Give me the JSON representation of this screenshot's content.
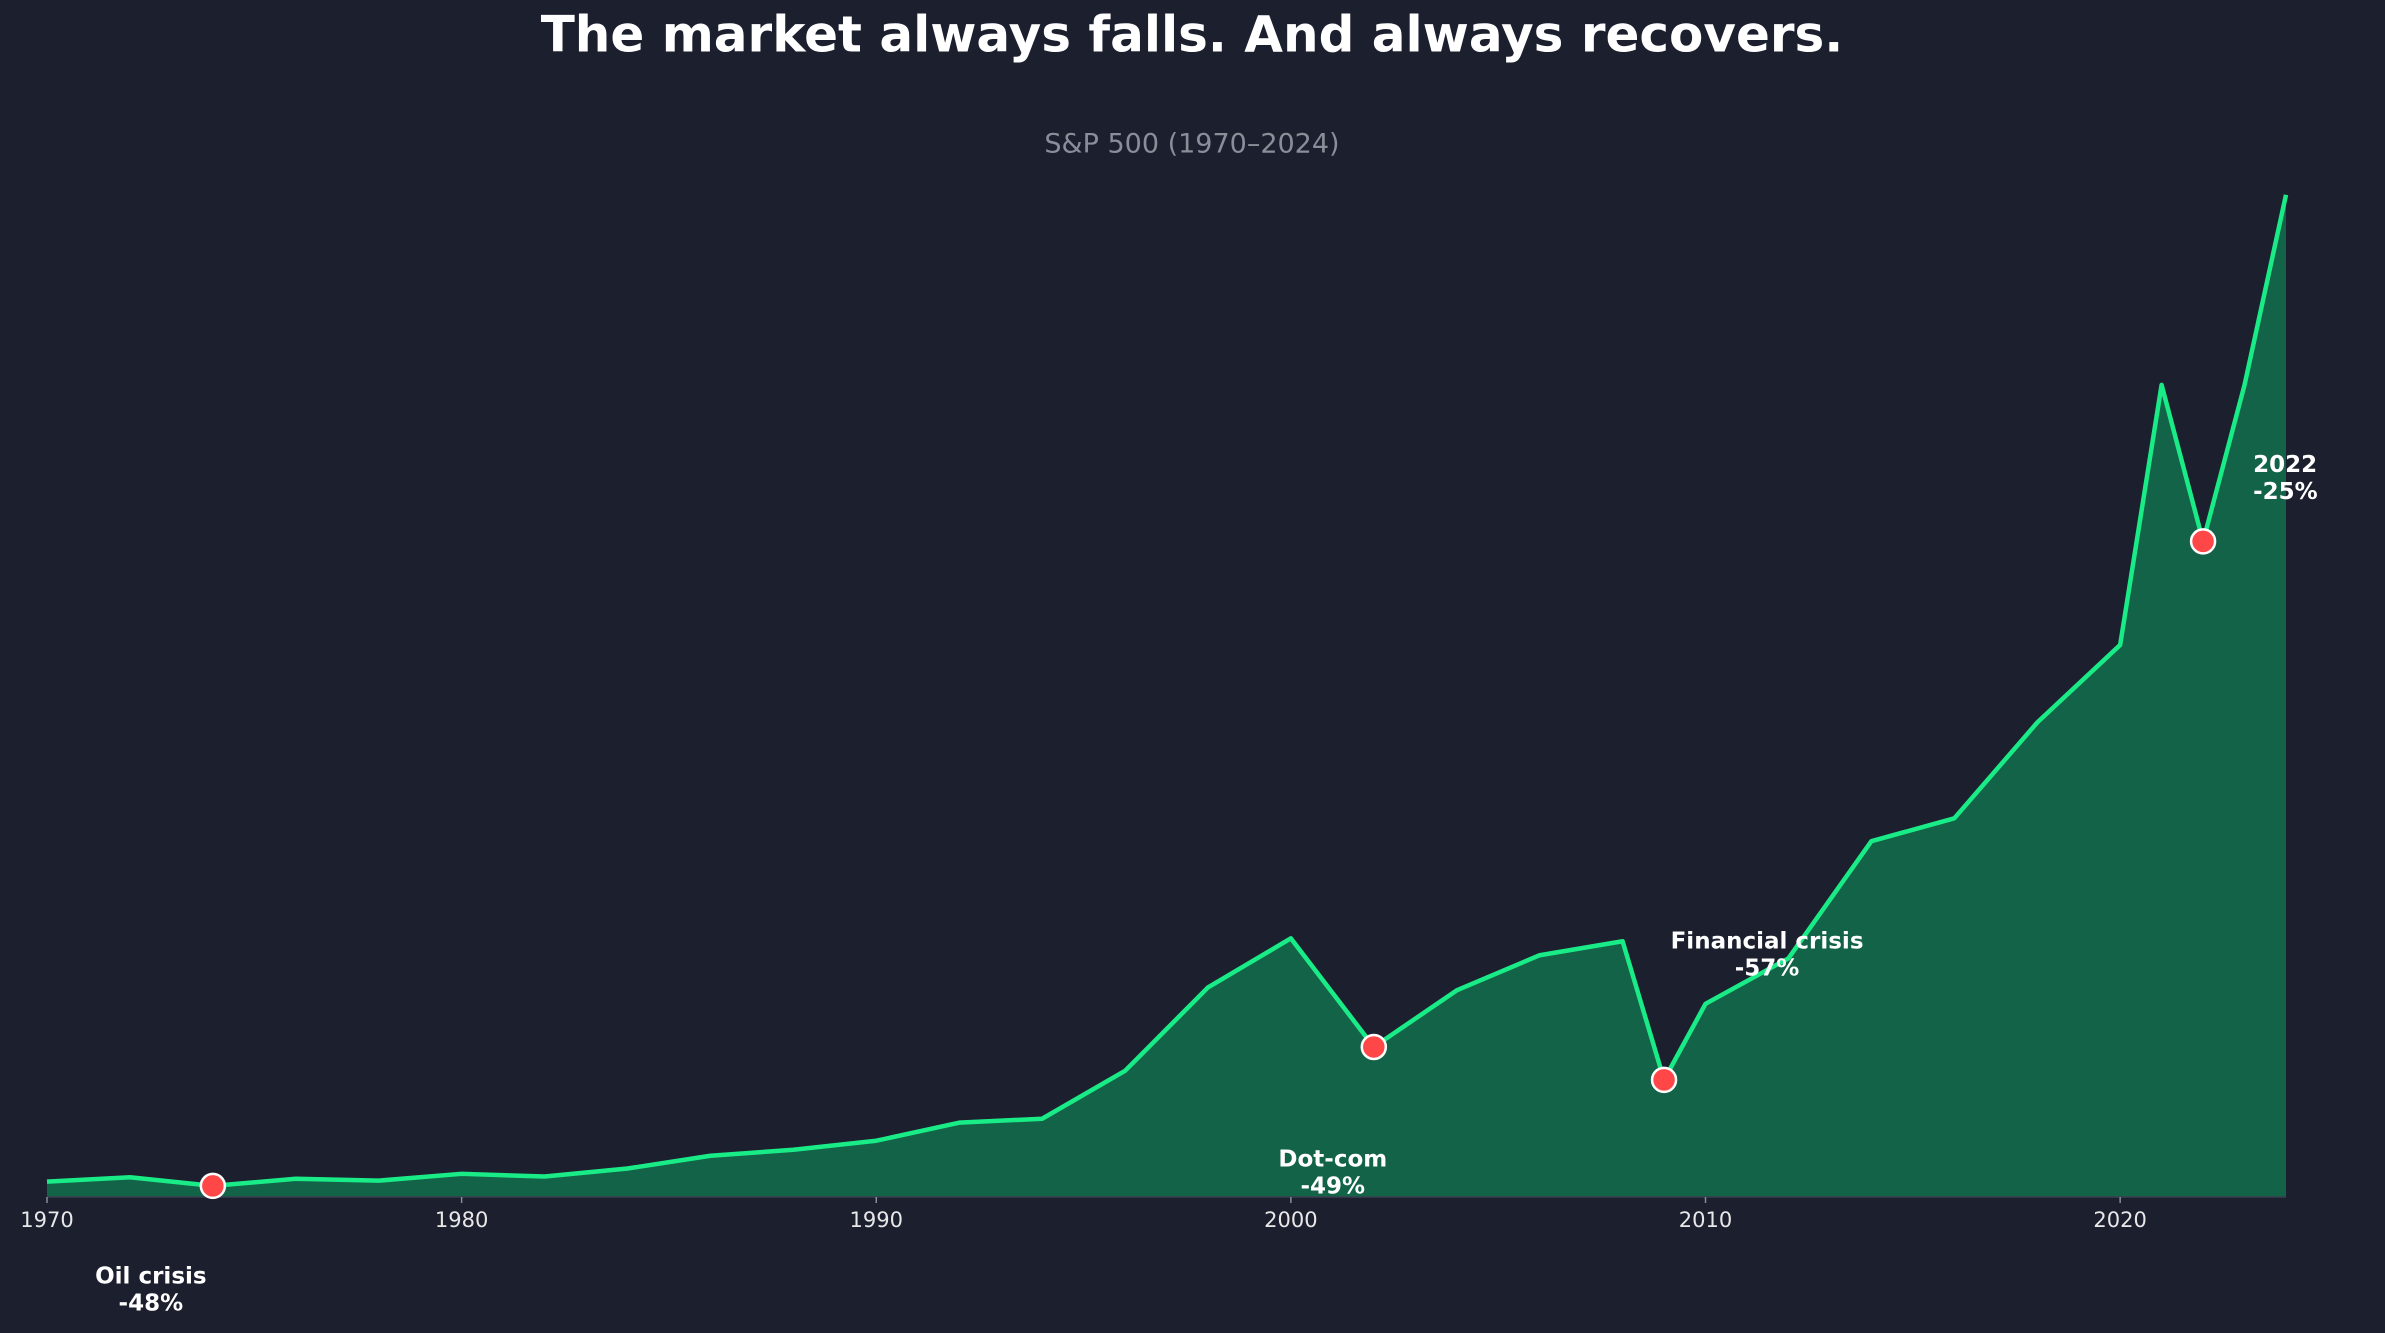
{
  "chart_data": {
    "type": "area",
    "title": "The market always falls. And always recovers.",
    "subtitle": "S&P 500 (1970–2024)",
    "x": [
      1970,
      1972,
      1974,
      1976,
      1978,
      1980,
      1982,
      1984,
      1986,
      1988,
      1990,
      1992,
      1994,
      1996,
      1998,
      2000,
      2002,
      2004,
      2006,
      2008,
      2009,
      2010,
      2012,
      2014,
      2016,
      2018,
      2020,
      2021,
      2022,
      2023,
      2024
    ],
    "values": [
      90,
      116,
      65,
      107,
      96,
      136,
      120,
      167,
      242,
      277,
      330,
      436,
      459,
      740,
      1229,
      1517,
      880,
      1212,
      1418,
      1500,
      687,
      1133,
      1400,
      2087,
      2221,
      2783,
      3238,
      4763,
      3845,
      4763,
      5878
    ],
    "color": "#19ec86",
    "fill_color": "#136349",
    "xlim": [
      1970,
      2024
    ],
    "xticks": [
      1970,
      1980,
      1990,
      2000,
      2010,
      2020
    ],
    "ylim": [
      0,
      6000
    ],
    "marker_color": "#ff4747",
    "crashes": [
      {
        "year": 1974,
        "name": "Oil crisis",
        "drop": -48,
        "drop_label": "-48%",
        "point": 2
      },
      {
        "year": 2002,
        "name": "Dot-com",
        "drop": -49,
        "drop_label": "-49%",
        "point": 16
      },
      {
        "year": 2009,
        "name": "Financial crisis",
        "drop": -57,
        "drop_label": "-57%",
        "point": 20
      },
      {
        "year": 2022,
        "name": "2022",
        "drop": -25,
        "drop_label": "-25%",
        "point": 28
      }
    ]
  }
}
